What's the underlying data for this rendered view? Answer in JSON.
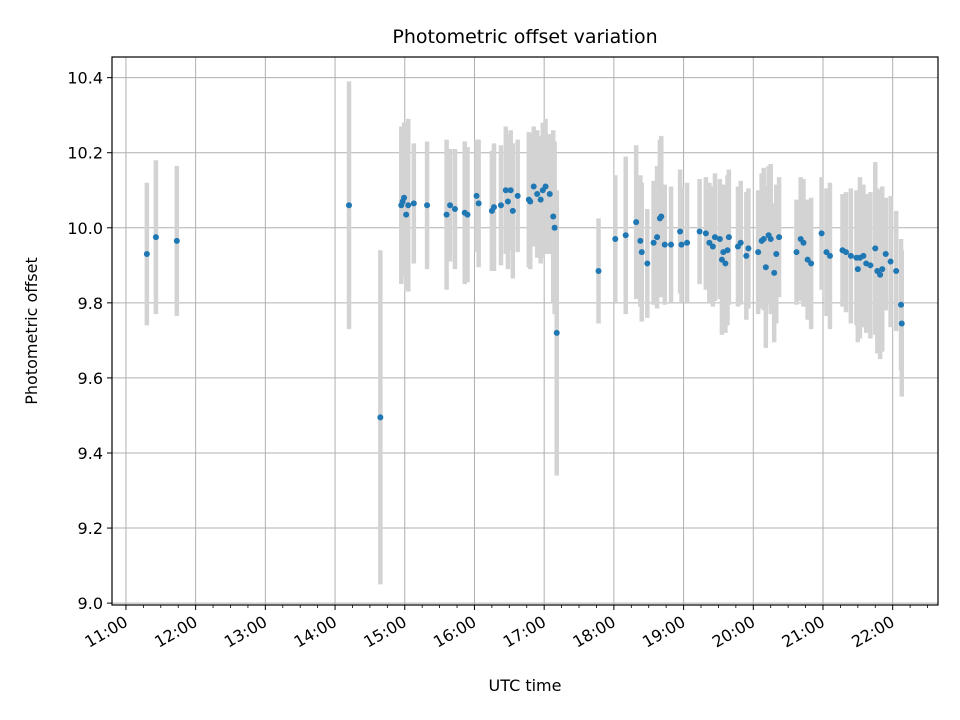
{
  "chart_data": {
    "type": "scatter",
    "title": "Photometric offset variation",
    "xlabel": "UTC time",
    "ylabel": "Photometric offset",
    "x_unit": "hours UTC",
    "xlim": [
      10.8,
      22.65
    ],
    "ylim": [
      8.995,
      10.455
    ],
    "xticks": [
      11,
      12,
      13,
      14,
      15,
      16,
      17,
      18,
      19,
      20,
      21,
      22
    ],
    "xtick_labels": [
      "11:00",
      "12:00",
      "13:00",
      "14:00",
      "15:00",
      "16:00",
      "17:00",
      "18:00",
      "19:00",
      "20:00",
      "21:00",
      "22:00"
    ],
    "yticks": [
      9.0,
      9.2,
      9.4,
      9.6,
      9.8,
      10.0,
      10.2,
      10.4
    ],
    "ytick_labels": [
      "9.0",
      "9.2",
      "9.4",
      "9.6",
      "9.8",
      "10.0",
      "10.2",
      "10.4"
    ],
    "grid": true,
    "marker_color": "#1f77b4",
    "errorbar_color": "#d3d3d3",
    "points": [
      [
        11.3,
        9.93,
        0.19
      ],
      [
        11.43,
        9.975,
        0.205
      ],
      [
        11.73,
        9.965,
        0.2
      ],
      [
        14.2,
        10.06,
        0.33
      ],
      [
        14.65,
        9.495,
        0.445
      ],
      [
        14.95,
        10.06,
        0.21
      ],
      [
        14.97,
        10.07,
        0.2
      ],
      [
        14.99,
        10.08,
        0.2
      ],
      [
        15.02,
        10.035,
        0.2
      ],
      [
        15.05,
        10.06,
        0.23
      ],
      [
        15.13,
        10.065,
        0.16
      ],
      [
        15.32,
        10.06,
        0.17
      ],
      [
        15.6,
        10.035,
        0.2
      ],
      [
        15.65,
        10.06,
        0.15
      ],
      [
        15.72,
        10.05,
        0.16
      ],
      [
        15.86,
        10.04,
        0.19
      ],
      [
        15.9,
        10.035,
        0.18
      ],
      [
        16.03,
        10.085,
        0.15
      ],
      [
        16.06,
        10.065,
        0.17
      ],
      [
        16.25,
        10.045,
        0.16
      ],
      [
        16.28,
        10.055,
        0.17
      ],
      [
        16.38,
        10.06,
        0.16
      ],
      [
        16.45,
        10.1,
        0.17
      ],
      [
        16.48,
        10.07,
        0.18
      ],
      [
        16.52,
        10.1,
        0.16
      ],
      [
        16.55,
        10.045,
        0.18
      ],
      [
        16.62,
        10.085,
        0.15
      ],
      [
        16.78,
        10.075,
        0.18
      ],
      [
        16.8,
        10.07,
        0.18
      ],
      [
        16.85,
        10.11,
        0.16
      ],
      [
        16.9,
        10.09,
        0.17
      ],
      [
        16.95,
        10.075,
        0.17
      ],
      [
        16.98,
        10.1,
        0.18
      ],
      [
        17.02,
        10.11,
        0.18
      ],
      [
        17.08,
        10.09,
        0.16
      ],
      [
        17.13,
        10.03,
        0.23
      ],
      [
        17.15,
        10.0,
        0.23
      ],
      [
        17.18,
        9.72,
        0.38
      ],
      [
        17.78,
        9.885,
        0.14
      ],
      [
        18.02,
        9.97,
        0.17
      ],
      [
        18.17,
        9.98,
        0.21
      ],
      [
        18.32,
        10.015,
        0.205
      ],
      [
        18.38,
        9.965,
        0.175
      ],
      [
        18.4,
        9.935,
        0.185
      ],
      [
        18.48,
        9.905,
        0.145
      ],
      [
        18.57,
        9.96,
        0.165
      ],
      [
        18.62,
        9.975,
        0.19
      ],
      [
        18.66,
        10.025,
        0.21
      ],
      [
        18.68,
        10.03,
        0.215
      ],
      [
        18.73,
        9.955,
        0.16
      ],
      [
        18.82,
        9.955,
        0.155
      ],
      [
        18.95,
        9.99,
        0.165
      ],
      [
        18.97,
        9.955,
        0.155
      ],
      [
        19.05,
        9.96,
        0.16
      ],
      [
        19.23,
        9.99,
        0.14
      ],
      [
        19.32,
        9.985,
        0.15
      ],
      [
        19.37,
        9.96,
        0.16
      ],
      [
        19.42,
        9.95,
        0.16
      ],
      [
        19.45,
        9.975,
        0.17
      ],
      [
        19.52,
        9.97,
        0.16
      ],
      [
        19.55,
        9.915,
        0.2
      ],
      [
        19.57,
        9.935,
        0.18
      ],
      [
        19.6,
        9.905,
        0.185
      ],
      [
        19.63,
        9.94,
        0.2
      ],
      [
        19.65,
        9.975,
        0.18
      ],
      [
        19.78,
        9.95,
        0.16
      ],
      [
        19.82,
        9.96,
        0.165
      ],
      [
        19.9,
        9.925,
        0.17
      ],
      [
        19.93,
        9.945,
        0.16
      ],
      [
        20.07,
        9.935,
        0.165
      ],
      [
        20.12,
        9.965,
        0.18
      ],
      [
        20.15,
        9.97,
        0.19
      ],
      [
        20.18,
        9.895,
        0.215
      ],
      [
        20.22,
        9.98,
        0.185
      ],
      [
        20.25,
        9.97,
        0.2
      ],
      [
        20.3,
        9.88,
        0.185
      ],
      [
        20.33,
        9.93,
        0.185
      ],
      [
        20.37,
        9.975,
        0.16
      ],
      [
        20.62,
        9.935,
        0.14
      ],
      [
        20.68,
        9.97,
        0.165
      ],
      [
        20.72,
        9.96,
        0.17
      ],
      [
        20.78,
        9.915,
        0.16
      ],
      [
        20.83,
        9.905,
        0.175
      ],
      [
        20.98,
        9.985,
        0.15
      ],
      [
        21.05,
        9.935,
        0.17
      ],
      [
        21.1,
        9.925,
        0.195
      ],
      [
        21.28,
        9.94,
        0.15
      ],
      [
        21.33,
        9.935,
        0.16
      ],
      [
        21.4,
        9.925,
        0.18
      ],
      [
        21.48,
        9.92,
        0.18
      ],
      [
        21.5,
        9.89,
        0.195
      ],
      [
        21.53,
        9.92,
        0.215
      ],
      [
        21.58,
        9.925,
        0.19
      ],
      [
        21.62,
        9.905,
        0.185
      ],
      [
        21.68,
        9.9,
        0.195
      ],
      [
        21.75,
        9.945,
        0.23
      ],
      [
        21.78,
        9.885,
        0.22
      ],
      [
        21.82,
        9.875,
        0.225
      ],
      [
        21.85,
        9.89,
        0.22
      ],
      [
        21.9,
        9.93,
        0.15
      ],
      [
        21.97,
        9.91,
        0.175
      ],
      [
        22.05,
        9.885,
        0.16
      ],
      [
        22.12,
        9.795,
        0.175
      ],
      [
        22.13,
        9.745,
        0.195
      ]
    ]
  }
}
